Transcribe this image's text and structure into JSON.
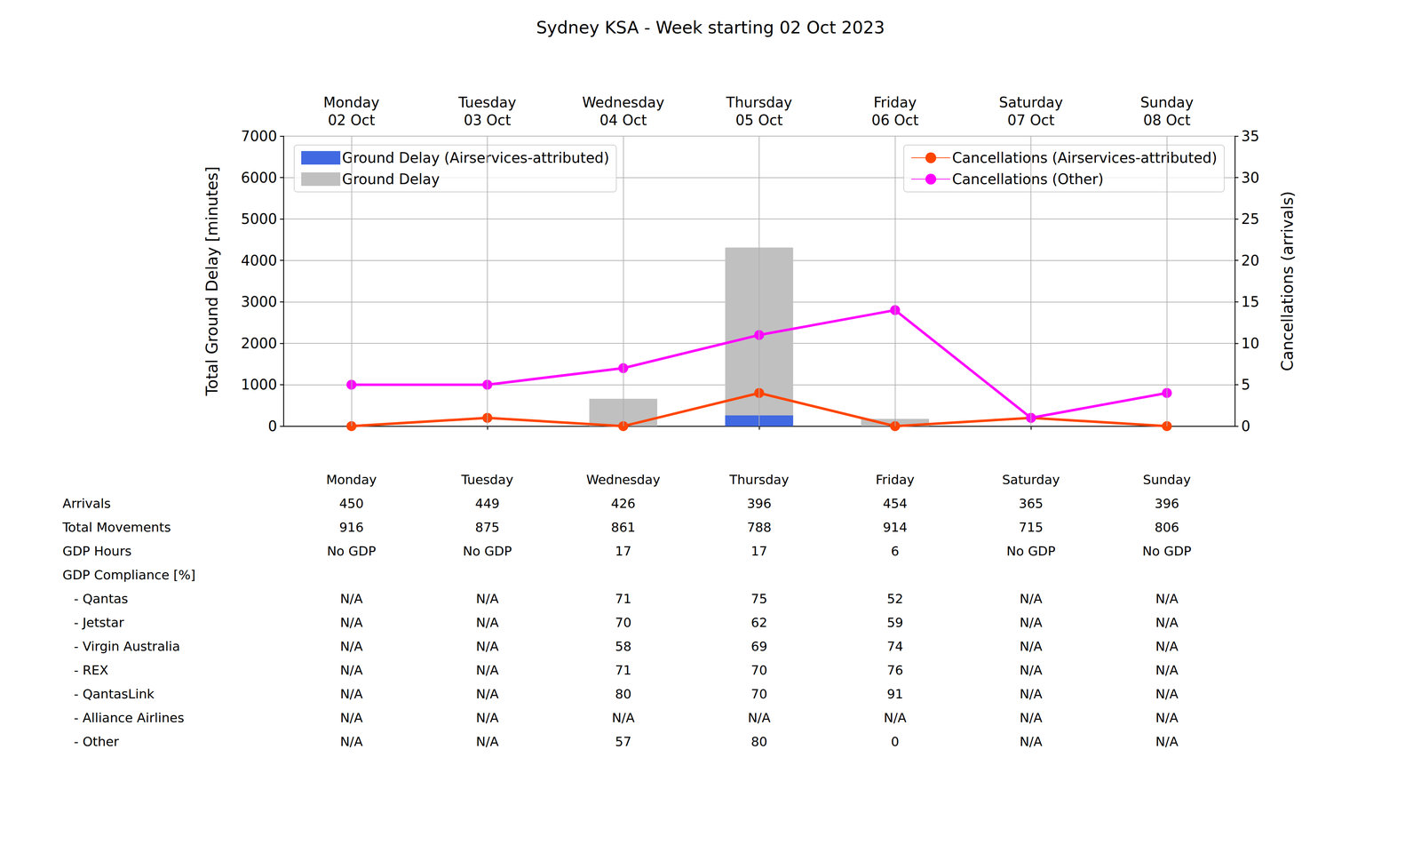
{
  "chart_data": {
    "type": "bar",
    "title": "Sydney KSA - Week starting 02 Oct 2023",
    "categories": [
      "Monday\n02 Oct",
      "Tuesday\n03 Oct",
      "Wednesday\n04 Oct",
      "Thursday\n05 Oct",
      "Friday\n06 Oct",
      "Saturday\n07 Oct",
      "Sunday\n08 Oct"
    ],
    "ylabel": "Total Ground Delay [minutes]",
    "y2label": "Cancellations (arrivals)",
    "ylim": [
      0,
      7000
    ],
    "yticks": [
      0,
      1000,
      2000,
      3000,
      4000,
      5000,
      6000,
      7000
    ],
    "y2lim": [
      0,
      35
    ],
    "y2ticks": [
      0,
      5,
      10,
      15,
      20,
      25,
      30,
      35
    ],
    "grid": true,
    "series": [
      {
        "name": "Ground Delay",
        "type": "bar",
        "color": "#c0c0c0",
        "legend": "upper left",
        "values": [
          0,
          0,
          660,
          4310,
          175,
          0,
          0
        ]
      },
      {
        "name": "Ground Delay (Airservices-attributed)",
        "type": "bar",
        "color": "#4169e1",
        "legend": "upper left",
        "values": [
          0,
          0,
          0,
          260,
          0,
          0,
          0
        ]
      },
      {
        "name": "Cancellations (Airservices-attributed)",
        "type": "line",
        "axis": "y2",
        "color": "#ff4500",
        "marker": "circle",
        "legend": "upper right",
        "values": [
          0,
          1,
          0,
          4,
          0,
          1,
          0
        ]
      },
      {
        "name": "Cancellations (Other)",
        "type": "line",
        "axis": "y2",
        "color": "#ff00ff",
        "marker": "circle",
        "legend": "upper right",
        "values": [
          5,
          5,
          7,
          11,
          14,
          1,
          4
        ]
      }
    ]
  },
  "table": {
    "columns": [
      "Monday",
      "Tuesday",
      "Wednesday",
      "Thursday",
      "Friday",
      "Saturday",
      "Sunday"
    ],
    "rows": [
      {
        "label": "Arrivals",
        "values": [
          450,
          449,
          426,
          396,
          454,
          365,
          396
        ]
      },
      {
        "label": "Total Movements",
        "values": [
          916,
          875,
          861,
          788,
          914,
          715,
          806
        ]
      },
      {
        "label": "GDP Hours",
        "values": [
          "No GDP",
          "No GDP",
          17,
          17,
          6,
          "No GDP",
          "No GDP"
        ]
      },
      {
        "label": "GDP Compliance [%]"
      },
      {
        "label": "- Qantas",
        "values": [
          "N/A",
          "N/A",
          71,
          75,
          52,
          "N/A",
          "N/A"
        ]
      },
      {
        "label": "- Jetstar",
        "values": [
          "N/A",
          "N/A",
          70,
          62,
          59,
          "N/A",
          "N/A"
        ]
      },
      {
        "label": "- Virgin Australia",
        "values": [
          "N/A",
          "N/A",
          58,
          69,
          74,
          "N/A",
          "N/A"
        ]
      },
      {
        "label": "- REX",
        "values": [
          "N/A",
          "N/A",
          71,
          70,
          76,
          "N/A",
          "N/A"
        ]
      },
      {
        "label": "- QantasLink",
        "values": [
          "N/A",
          "N/A",
          80,
          70,
          91,
          "N/A",
          "N/A"
        ]
      },
      {
        "label": "- Alliance Airlines",
        "values": [
          "N/A",
          "N/A",
          "N/A",
          "N/A",
          "N/A",
          "N/A",
          "N/A"
        ]
      },
      {
        "label": "- Other",
        "values": [
          "N/A",
          "N/A",
          57,
          80,
          0,
          "N/A",
          "N/A"
        ]
      }
    ]
  }
}
